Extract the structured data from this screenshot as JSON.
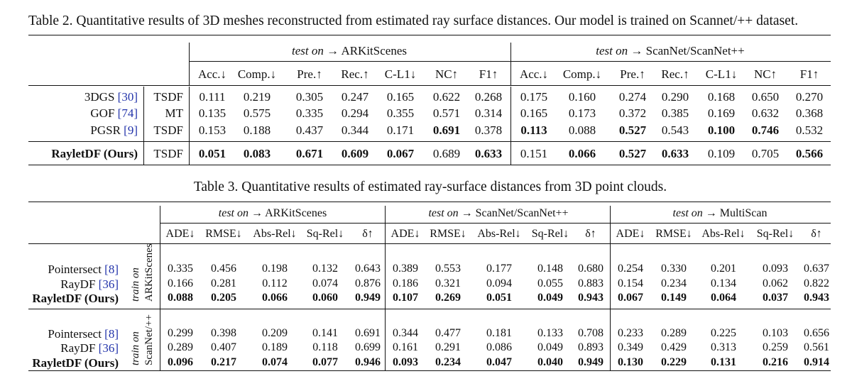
{
  "table2": {
    "caption": "Table 2. Quantitative results of 3D meshes reconstructed from estimated ray surface distances. Our model is trained on Scannet/++ dataset.",
    "group1": {
      "prefix": "test on",
      "arrow": "→",
      "name": "ARKitScenes"
    },
    "group2": {
      "prefix": "test on",
      "arrow": "→",
      "name": "ScanNet/ScanNet++"
    },
    "metrics": [
      "Acc.↓",
      "Comp.↓",
      "Pre.↑",
      "Rec.↑",
      "C-L1↓",
      "NC↑",
      "F1↑"
    ],
    "rows": [
      {
        "method": "3DGS",
        "cite": "[30]",
        "mesh": "TSDF",
        "arkit": [
          "0.111",
          "0.219",
          "0.305",
          "0.247",
          "0.165",
          "0.622",
          "0.268"
        ],
        "scannet": [
          "0.175",
          "0.160",
          "0.274",
          "0.290",
          "0.168",
          "0.650",
          "0.270"
        ],
        "bold_arkit": [],
        "bold_scannet": []
      },
      {
        "method": "GOF",
        "cite": "[74]",
        "mesh": "MT",
        "arkit": [
          "0.135",
          "0.575",
          "0.335",
          "0.294",
          "0.355",
          "0.571",
          "0.314"
        ],
        "scannet": [
          "0.165",
          "0.173",
          "0.372",
          "0.385",
          "0.169",
          "0.632",
          "0.368"
        ],
        "bold_arkit": [],
        "bold_scannet": []
      },
      {
        "method": "PGSR",
        "cite": "[9]",
        "mesh": "TSDF",
        "arkit": [
          "0.153",
          "0.188",
          "0.437",
          "0.344",
          "0.171",
          "0.691",
          "0.378"
        ],
        "scannet": [
          "0.113",
          "0.088",
          "0.527",
          "0.543",
          "0.100",
          "0.746",
          "0.532"
        ],
        "bold_arkit": [
          5
        ],
        "bold_scannet": [
          0,
          2,
          4,
          5
        ]
      },
      {
        "method": "RayletDF (Ours)",
        "cite": "",
        "mesh": "TSDF",
        "arkit": [
          "0.051",
          "0.083",
          "0.671",
          "0.609",
          "0.067",
          "0.689",
          "0.633"
        ],
        "scannet": [
          "0.151",
          "0.066",
          "0.527",
          "0.633",
          "0.109",
          "0.705",
          "0.566"
        ],
        "bold_arkit": [
          0,
          1,
          2,
          3,
          4,
          6
        ],
        "bold_scannet": [
          1,
          2,
          3,
          6
        ],
        "method_bold": true
      }
    ]
  },
  "table3": {
    "caption": "Table 3. Quantitative results of estimated ray-surface distances from 3D point clouds.",
    "groups": [
      {
        "prefix": "test on",
        "arrow": "→",
        "name": "ARKitScenes"
      },
      {
        "prefix": "test on",
        "arrow": "→",
        "name": "ScanNet/ScanNet++"
      },
      {
        "prefix": "test on",
        "arrow": "→",
        "name": "MultiScan"
      }
    ],
    "metrics": [
      "ADE↓",
      "RMSE↓",
      "Abs-Rel↓",
      "Sq-Rel↓",
      "δ↑"
    ],
    "blocks": [
      {
        "train_label": "train on",
        "train_set": "ARKitScenes",
        "rows": [
          {
            "method": "Pointersect",
            "cite": "[8]",
            "vals": [
              "0.335",
              "0.456",
              "0.198",
              "0.132",
              "0.643",
              "0.389",
              "0.553",
              "0.177",
              "0.148",
              "0.680",
              "0.254",
              "0.330",
              "0.201",
              "0.093",
              "0.637"
            ],
            "bold": false
          },
          {
            "method": "RayDF",
            "cite": "[36]",
            "vals": [
              "0.166",
              "0.281",
              "0.112",
              "0.074",
              "0.876",
              "0.186",
              "0.321",
              "0.094",
              "0.055",
              "0.883",
              "0.154",
              "0.234",
              "0.134",
              "0.062",
              "0.822"
            ],
            "bold": false
          },
          {
            "method": "RayletDF (Ours)",
            "cite": "",
            "vals": [
              "0.088",
              "0.205",
              "0.066",
              "0.060",
              "0.949",
              "0.107",
              "0.269",
              "0.051",
              "0.049",
              "0.943",
              "0.067",
              "0.149",
              "0.064",
              "0.037",
              "0.943"
            ],
            "bold": true
          }
        ]
      },
      {
        "train_label": "train on",
        "train_set": "ScanNet/++",
        "rows": [
          {
            "method": "Pointersect",
            "cite": "[8]",
            "vals": [
              "0.299",
              "0.398",
              "0.209",
              "0.141",
              "0.691",
              "0.344",
              "0.477",
              "0.181",
              "0.133",
              "0.708",
              "0.233",
              "0.289",
              "0.225",
              "0.103",
              "0.656"
            ],
            "bold": false
          },
          {
            "method": "RayDF",
            "cite": "[36]",
            "vals": [
              "0.289",
              "0.407",
              "0.189",
              "0.118",
              "0.699",
              "0.161",
              "0.291",
              "0.086",
              "0.049",
              "0.893",
              "0.349",
              "0.429",
              "0.313",
              "0.259",
              "0.561"
            ],
            "bold": false
          },
          {
            "method": "RayletDF (Ours)",
            "cite": "",
            "vals": [
              "0.096",
              "0.217",
              "0.074",
              "0.077",
              "0.946",
              "0.093",
              "0.234",
              "0.047",
              "0.040",
              "0.949",
              "0.130",
              "0.229",
              "0.131",
              "0.216",
              "0.914"
            ],
            "bold": true
          }
        ]
      }
    ]
  }
}
